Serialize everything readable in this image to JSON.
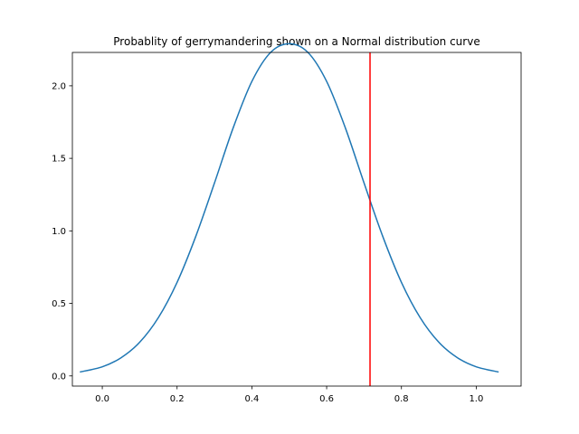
{
  "chart_data": {
    "type": "line",
    "title": "Probablity of gerrymandering shown on a Normal distribution curve",
    "xlabel": "",
    "ylabel": "",
    "xlim": [
      -0.08,
      1.12
    ],
    "ylim": [
      -0.07,
      2.23
    ],
    "xticks": [
      0.0,
      0.2,
      0.4,
      0.6,
      0.8,
      1.0
    ],
    "xtick_labels": [
      "0.0",
      "0.2",
      "0.4",
      "0.6",
      "0.8",
      "1.0"
    ],
    "yticks": [
      0.0,
      0.5,
      1.0,
      1.5,
      2.0
    ],
    "ytick_labels": [
      "0.0",
      "0.5",
      "1.0",
      "1.5",
      "2.0"
    ],
    "grid": false,
    "series": [
      {
        "color": "#1f77b4",
        "x": [
          -0.06,
          0.0,
          0.05,
          0.1,
          0.15,
          0.2,
          0.25,
          0.3,
          0.35,
          0.4,
          0.45,
          0.5,
          0.55,
          0.6,
          0.65,
          0.7,
          0.75,
          0.8,
          0.85,
          0.9,
          0.95,
          1.0,
          1.06
        ],
        "y": [
          0.027,
          0.063,
          0.125,
          0.232,
          0.402,
          0.645,
          0.962,
          1.33,
          1.71,
          2.03,
          2.23,
          2.29,
          2.23,
          2.03,
          1.71,
          1.33,
          0.962,
          0.645,
          0.402,
          0.232,
          0.125,
          0.063,
          0.027
        ]
      }
    ],
    "vline": {
      "x": 0.716,
      "color": "#ff0000"
    }
  }
}
